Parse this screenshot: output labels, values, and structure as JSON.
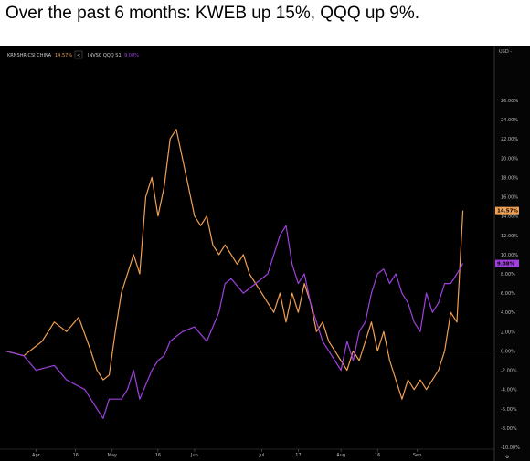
{
  "headline": "Over the past 6 months: KWEB up 15%, QQQ up 9%.",
  "chart_data": {
    "type": "line",
    "currency_label": "USD",
    "legend": [
      {
        "name": "KRNSHR CSI CHINA",
        "value": "14.57%",
        "color": "#f0a055"
      },
      {
        "name": "INVSC QQQ S1",
        "value": "9.08%",
        "color": "#a040e0"
      }
    ],
    "nav_label": "<",
    "x_tick_labels": [
      "Apr",
      "16",
      "May",
      "16",
      "Jun",
      "Jul",
      "17",
      "Aug",
      "16",
      "Sep"
    ],
    "y_tick_labels": [
      "26.00%",
      "24.00%",
      "22.00%",
      "20.00%",
      "18.00%",
      "16.00%",
      "14.00%",
      "12.00%",
      "10.00%",
      "8.00%",
      "6.00%",
      "4.00%",
      "2.00%",
      "0.00%",
      "-2.00%",
      "-4.00%",
      "-6.00%",
      "-8.00%",
      "-10.00%"
    ],
    "ylim": [
      -10,
      26
    ],
    "series": [
      {
        "name": "KRNSHR CSI CHINA",
        "color": "#f0a055",
        "values": [
          [
            0,
            0
          ],
          [
            3,
            -0.5
          ],
          [
            6,
            1
          ],
          [
            8,
            3
          ],
          [
            10,
            2
          ],
          [
            12,
            3.5
          ],
          [
            14,
            0
          ],
          [
            15,
            -2
          ],
          [
            16,
            -3
          ],
          [
            17,
            -2.5
          ],
          [
            18,
            2
          ],
          [
            19,
            6
          ],
          [
            21,
            10
          ],
          [
            22,
            8
          ],
          [
            23,
            16
          ],
          [
            24,
            18
          ],
          [
            25,
            14
          ],
          [
            26,
            17
          ],
          [
            27,
            22
          ],
          [
            28,
            23
          ],
          [
            29,
            20
          ],
          [
            30,
            17
          ],
          [
            31,
            14
          ],
          [
            32,
            13
          ],
          [
            33,
            14
          ],
          [
            34,
            11
          ],
          [
            35,
            10
          ],
          [
            36,
            11
          ],
          [
            37,
            10
          ],
          [
            38,
            9
          ],
          [
            39,
            10
          ],
          [
            40,
            8
          ],
          [
            41,
            7
          ],
          [
            42,
            6
          ],
          [
            43,
            5
          ],
          [
            44,
            4
          ],
          [
            45,
            6
          ],
          [
            46,
            3
          ],
          [
            47,
            6
          ],
          [
            48,
            4
          ],
          [
            49,
            7
          ],
          [
            50,
            5
          ],
          [
            51,
            2
          ],
          [
            52,
            3
          ],
          [
            53,
            1
          ],
          [
            54,
            0
          ],
          [
            55,
            -1
          ],
          [
            56,
            -2
          ],
          [
            57,
            0
          ],
          [
            58,
            -1
          ],
          [
            59,
            1
          ],
          [
            60,
            3
          ],
          [
            61,
            0
          ],
          [
            62,
            2
          ],
          [
            63,
            -1
          ],
          [
            64,
            -3
          ],
          [
            65,
            -5
          ],
          [
            66,
            -3
          ],
          [
            67,
            -4
          ],
          [
            68,
            -3
          ],
          [
            69,
            -4
          ],
          [
            70,
            -3
          ],
          [
            71,
            -2
          ],
          [
            72,
            0
          ],
          [
            73,
            4
          ],
          [
            74,
            3
          ],
          [
            75,
            14.57
          ]
        ]
      },
      {
        "name": "INVSC QQQ S1",
        "color": "#a040e0",
        "values": [
          [
            0,
            0
          ],
          [
            3,
            -0.5
          ],
          [
            5,
            -2
          ],
          [
            8,
            -1.5
          ],
          [
            10,
            -3
          ],
          [
            13,
            -4
          ],
          [
            15,
            -6
          ],
          [
            16,
            -7
          ],
          [
            17,
            -5
          ],
          [
            19,
            -5
          ],
          [
            20,
            -4
          ],
          [
            21,
            -2
          ],
          [
            22,
            -5
          ],
          [
            24,
            -2
          ],
          [
            25,
            -1
          ],
          [
            26,
            -0.5
          ],
          [
            27,
            1
          ],
          [
            29,
            2
          ],
          [
            31,
            2.5
          ],
          [
            33,
            1
          ],
          [
            35,
            4
          ],
          [
            36,
            7
          ],
          [
            37,
            7.5
          ],
          [
            39,
            6
          ],
          [
            41,
            7
          ],
          [
            43,
            8
          ],
          [
            45,
            12
          ],
          [
            46,
            13
          ],
          [
            47,
            9
          ],
          [
            48,
            7
          ],
          [
            49,
            8
          ],
          [
            50,
            5
          ],
          [
            51,
            3
          ],
          [
            52,
            1
          ],
          [
            53,
            0
          ],
          [
            54,
            -1
          ],
          [
            55,
            -2
          ],
          [
            56,
            1
          ],
          [
            57,
            -1
          ],
          [
            58,
            2
          ],
          [
            59,
            3
          ],
          [
            60,
            6
          ],
          [
            61,
            8
          ],
          [
            62,
            8.5
          ],
          [
            63,
            7
          ],
          [
            64,
            8
          ],
          [
            65,
            6
          ],
          [
            66,
            5
          ],
          [
            67,
            3
          ],
          [
            68,
            2
          ],
          [
            69,
            6
          ],
          [
            70,
            4
          ],
          [
            71,
            5
          ],
          [
            72,
            7
          ],
          [
            73,
            7
          ],
          [
            74,
            8
          ],
          [
            75,
            9.08
          ]
        ]
      }
    ]
  }
}
